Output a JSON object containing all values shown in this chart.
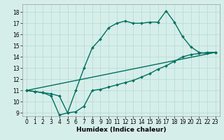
{
  "title": "",
  "xlabel": "Humidex (Indice chaleur)",
  "xlim": [
    -0.5,
    23.5
  ],
  "ylim": [
    8.7,
    18.7
  ],
  "yticks": [
    9,
    10,
    11,
    12,
    13,
    14,
    15,
    16,
    17,
    18
  ],
  "xticks": [
    0,
    1,
    2,
    3,
    4,
    5,
    6,
    7,
    8,
    9,
    10,
    11,
    12,
    13,
    14,
    15,
    16,
    17,
    18,
    19,
    20,
    21,
    22,
    23
  ],
  "bg_color": "#d6eeea",
  "grid_color": "#b8ddd8",
  "line_color": "#007060",
  "line1_x": [
    0,
    1,
    2,
    3,
    4,
    5,
    6,
    7,
    8,
    9,
    10,
    11,
    12,
    13,
    14,
    15,
    16,
    17,
    18,
    19,
    20,
    21,
    22,
    23
  ],
  "line1_y": [
    11.0,
    10.9,
    10.8,
    10.7,
    10.5,
    9.0,
    9.1,
    9.6,
    11.0,
    11.1,
    11.3,
    11.5,
    11.7,
    11.9,
    12.2,
    12.5,
    12.9,
    13.2,
    13.6,
    14.0,
    14.2,
    14.3,
    14.4,
    14.4
  ],
  "line2_x": [
    0,
    1,
    2,
    3,
    4,
    5,
    6,
    7,
    8,
    9,
    10,
    11,
    12,
    13,
    14,
    15,
    16,
    17,
    18,
    19,
    20,
    21,
    22,
    23
  ],
  "line2_y": [
    11.0,
    10.9,
    10.8,
    10.5,
    8.8,
    9.0,
    11.0,
    13.0,
    14.8,
    15.6,
    16.6,
    17.0,
    17.2,
    17.0,
    17.0,
    17.1,
    17.1,
    18.1,
    17.1,
    15.8,
    14.9,
    14.4,
    14.3,
    14.4
  ],
  "line3_x": [
    0,
    23
  ],
  "line3_y": [
    11.0,
    14.4
  ],
  "marker": "D",
  "markersize": 2.0,
  "linewidth": 1.0,
  "tick_fontsize": 5.5,
  "xlabel_fontsize": 6.5
}
